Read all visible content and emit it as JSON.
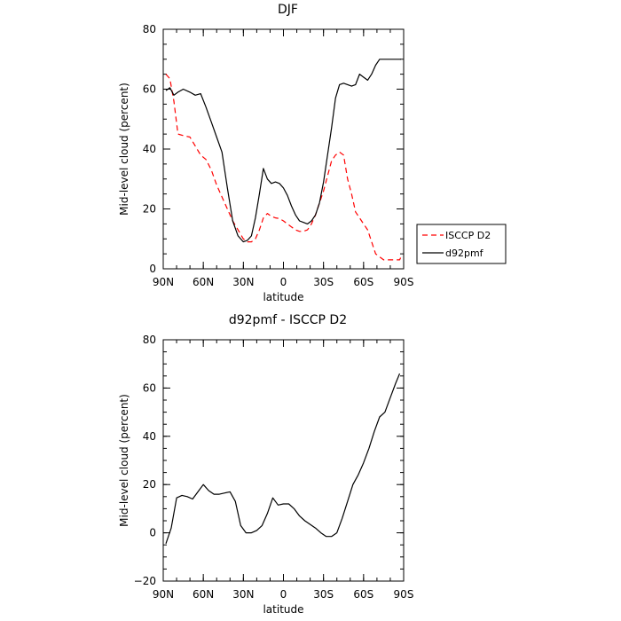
{
  "chart_data": [
    {
      "type": "line",
      "title": "DJF",
      "xlabel": "latitude",
      "ylabel": "Mid-level cloud (percent)",
      "xlim": [
        90,
        -90
      ],
      "ylim": [
        0,
        80
      ],
      "xticks": [
        90,
        60,
        30,
        0,
        -30,
        -60,
        -90
      ],
      "xtick_labels": [
        "90N",
        "60N",
        "30N",
        "0",
        "30S",
        "60S",
        "90S"
      ],
      "yticks": [
        0,
        20,
        40,
        60,
        80
      ],
      "ytick_labels": [
        "0",
        "20",
        "40",
        "60",
        "80"
      ],
      "legend_position": "right",
      "series": [
        {
          "name": "ISCCP D2",
          "color": "#ff0000",
          "dash": "dashed",
          "x": [
            88,
            85,
            82,
            79,
            75,
            70,
            66,
            62,
            58,
            54,
            50,
            46,
            42,
            38,
            34,
            30,
            27,
            24,
            21,
            18,
            15,
            12,
            9,
            6,
            3,
            0,
            -3,
            -6,
            -9,
            -12,
            -15,
            -18,
            -21,
            -24,
            -27,
            -30,
            -33,
            -36,
            -39,
            -42,
            -45,
            -48,
            -51,
            -54,
            -57,
            -60,
            -63,
            -66,
            -69,
            -72,
            -75,
            -78,
            -81,
            -84,
            -87,
            -88
          ],
          "y": [
            65,
            63.5,
            56,
            45,
            44.5,
            44,
            41,
            38,
            36.5,
            33,
            28,
            24,
            20,
            16,
            13,
            10,
            9,
            9,
            10,
            13,
            17,
            18.5,
            17.5,
            17,
            16.8,
            16,
            15,
            14,
            13,
            12.5,
            12.5,
            13,
            15,
            18,
            22,
            26,
            31,
            36,
            38,
            39,
            38,
            30,
            25,
            19,
            17,
            15,
            13,
            9,
            5,
            4,
            3,
            3,
            3,
            3,
            3,
            4
          ]
        },
        {
          "name": "d92pmf",
          "color": "#000000",
          "dash": "solid",
          "x": [
            88,
            85,
            82,
            79,
            75,
            70,
            66,
            62,
            58,
            54,
            50,
            46,
            42,
            38,
            34,
            30,
            27,
            24,
            21,
            18,
            15,
            12,
            9,
            6,
            3,
            0,
            -3,
            -6,
            -9,
            -12,
            -15,
            -18,
            -21,
            -24,
            -27,
            -30,
            -33,
            -36,
            -39,
            -42,
            -45,
            -48,
            -51,
            -54,
            -57,
            -60,
            -63,
            -66,
            -69,
            -72,
            -75,
            -78,
            -81,
            -84,
            -87,
            -88
          ],
          "y": [
            59.5,
            60.5,
            58,
            59,
            60,
            59,
            58,
            58.5,
            54,
            49,
            44,
            39,
            27,
            16,
            11,
            9,
            9.5,
            11,
            17,
            25,
            33.5,
            30,
            28.5,
            29,
            28.5,
            27,
            24.5,
            21,
            18,
            16,
            15.5,
            15,
            16,
            18,
            22,
            29,
            38,
            47,
            57,
            61.5,
            62,
            61.5,
            61,
            61.5,
            65,
            64,
            63,
            65,
            68,
            70,
            70,
            70,
            70,
            70,
            70,
            70
          ]
        }
      ]
    },
    {
      "type": "line",
      "title": "d92pmf - ISCCP D2",
      "xlabel": "latitude",
      "ylabel": "Mid-level cloud (percent)",
      "xlim": [
        90,
        -90
      ],
      "ylim": [
        -20,
        80
      ],
      "xticks": [
        90,
        60,
        30,
        0,
        -30,
        -60,
        -90
      ],
      "xtick_labels": [
        "90N",
        "60N",
        "30N",
        "0",
        "30S",
        "60S",
        "90S"
      ],
      "yticks": [
        -20,
        0,
        20,
        40,
        60,
        80
      ],
      "ytick_labels": [
        "−20",
        "0",
        "20",
        "40",
        "60",
        "80"
      ],
      "series": [
        {
          "color": "#000000",
          "dash": "solid",
          "x": [
            88,
            84,
            80,
            76,
            72,
            68,
            64,
            60,
            56,
            52,
            48,
            44,
            40,
            36,
            32,
            28,
            24,
            20,
            16,
            12,
            8,
            4,
            0,
            -4,
            -8,
            -12,
            -16,
            -20,
            -24,
            -28,
            -32,
            -36,
            -40,
            -44,
            -48,
            -52,
            -56,
            -60,
            -64,
            -68,
            -72,
            -76,
            -80,
            -84,
            -87
          ],
          "y": [
            -4.5,
            2,
            14.5,
            15.5,
            15,
            14,
            17,
            20,
            17.5,
            16,
            16,
            16.5,
            17,
            13,
            3,
            0,
            0,
            1,
            3,
            8,
            14.5,
            11.5,
            12,
            12,
            10,
            7,
            5,
            3.5,
            2,
            0,
            -1.5,
            -1.5,
            0,
            6,
            13,
            20,
            24,
            29,
            35,
            42,
            48,
            50,
            56,
            62,
            66
          ]
        }
      ]
    }
  ]
}
